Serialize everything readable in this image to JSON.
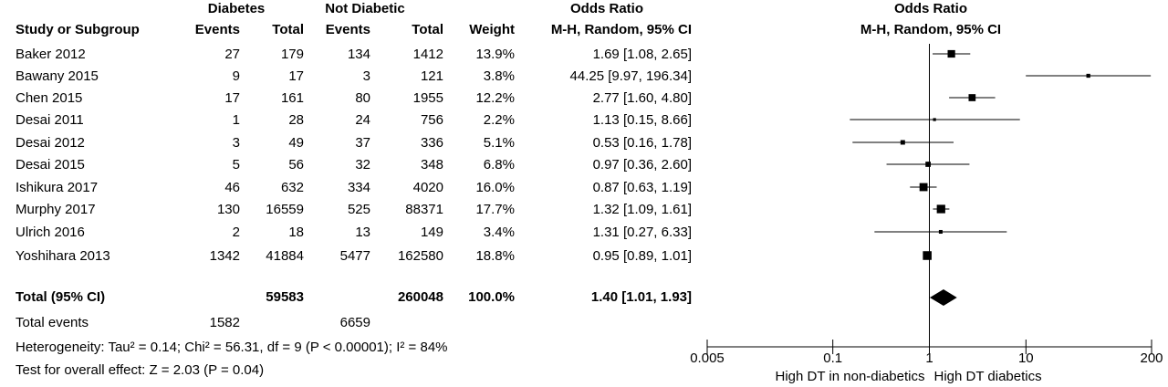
{
  "header": {
    "group1": "Diabetes",
    "group2": "Not Diabetic",
    "effect": "Odds Ratio",
    "plot_title": "Odds Ratio",
    "plot_subtitle": "M-H, Random, 95% CI",
    "columns": [
      "Study or Subgroup",
      "Events",
      "Total",
      "Events",
      "Total",
      "Weight",
      "M-H, Random, 95% CI"
    ]
  },
  "chart_data": {
    "type": "forest",
    "title": "Odds Ratio",
    "subtitle": "M-H, Random, 95% CI",
    "xscale": "log",
    "xlim": [
      0.005,
      200
    ],
    "xticks": [
      0.005,
      0.1,
      1,
      10,
      200
    ],
    "xtick_labels": [
      "0.005",
      "0.1",
      "1",
      "10",
      "200"
    ],
    "left_label": "High DT in non-diabetics",
    "right_label": "High DT diabetics",
    "studies": [
      {
        "name": "Baker 2012",
        "e1": "27",
        "t1": "179",
        "e2": "134",
        "t2": "1412",
        "weight": "13.9%",
        "ci_text": "1.69 [1.08, 2.65]",
        "or": 1.69,
        "lo": 1.08,
        "hi": 2.65
      },
      {
        "name": "Bawany 2015",
        "e1": "9",
        "t1": "17",
        "e2": "3",
        "t2": "121",
        "weight": "3.8%",
        "ci_text": "44.25 [9.97, 196.34]",
        "or": 44.25,
        "lo": 9.97,
        "hi": 196.34
      },
      {
        "name": "Chen 2015",
        "e1": "17",
        "t1": "161",
        "e2": "80",
        "t2": "1955",
        "weight": "12.2%",
        "ci_text": "2.77 [1.60, 4.80]",
        "or": 2.77,
        "lo": 1.6,
        "hi": 4.8
      },
      {
        "name": "Desai 2011",
        "e1": "1",
        "t1": "28",
        "e2": "24",
        "t2": "756",
        "weight": "2.2%",
        "ci_text": "1.13 [0.15, 8.66]",
        "or": 1.13,
        "lo": 0.15,
        "hi": 8.66
      },
      {
        "name": "Desai 2012",
        "e1": "3",
        "t1": "49",
        "e2": "37",
        "t2": "336",
        "weight": "5.1%",
        "ci_text": "0.53 [0.16, 1.78]",
        "or": 0.53,
        "lo": 0.16,
        "hi": 1.78
      },
      {
        "name": "Desai 2015",
        "e1": "5",
        "t1": "56",
        "e2": "32",
        "t2": "348",
        "weight": "6.8%",
        "ci_text": "0.97 [0.36, 2.60]",
        "or": 0.97,
        "lo": 0.36,
        "hi": 2.6
      },
      {
        "name": "Ishikura 2017",
        "e1": "46",
        "t1": "632",
        "e2": "334",
        "t2": "4020",
        "weight": "16.0%",
        "ci_text": "0.87 [0.63, 1.19]",
        "or": 0.87,
        "lo": 0.63,
        "hi": 1.19
      },
      {
        "name": "Murphy 2017",
        "e1": "130",
        "t1": "16559",
        "e2": "525",
        "t2": "88371",
        "weight": "17.7%",
        "ci_text": "1.32 [1.09, 1.61]",
        "or": 1.32,
        "lo": 1.09,
        "hi": 1.61
      },
      {
        "name": "Ulrich 2016",
        "e1": "2",
        "t1": "18",
        "e2": "13",
        "t2": "149",
        "weight": "3.4%",
        "ci_text": "1.31 [0.27, 6.33]",
        "or": 1.31,
        "lo": 0.27,
        "hi": 6.33
      },
      {
        "name": "Yoshihara 2013",
        "e1": "1342",
        "t1": "41884",
        "e2": "5477",
        "t2": "162580",
        "weight": "18.8%",
        "ci_text": "0.95 [0.89, 1.01]",
        "or": 0.95,
        "lo": 0.89,
        "hi": 1.01
      }
    ],
    "total": {
      "name": "Total (95% CI)",
      "t1": "59583",
      "t2": "260048",
      "weight": "100.0%",
      "ci_text": "1.40 [1.01, 1.93]",
      "or": 1.4,
      "lo": 1.01,
      "hi": 1.93
    },
    "total_events": {
      "label": "Total events",
      "e1": "1582",
      "e2": "6659"
    },
    "heterogeneity": "Heterogeneity: Tau² = 0.14; Chi² = 56.31, df = 9 (P < 0.00001); I² = 84%",
    "overall_effect": "Test for overall effect: Z = 2.03 (P = 0.04)"
  }
}
